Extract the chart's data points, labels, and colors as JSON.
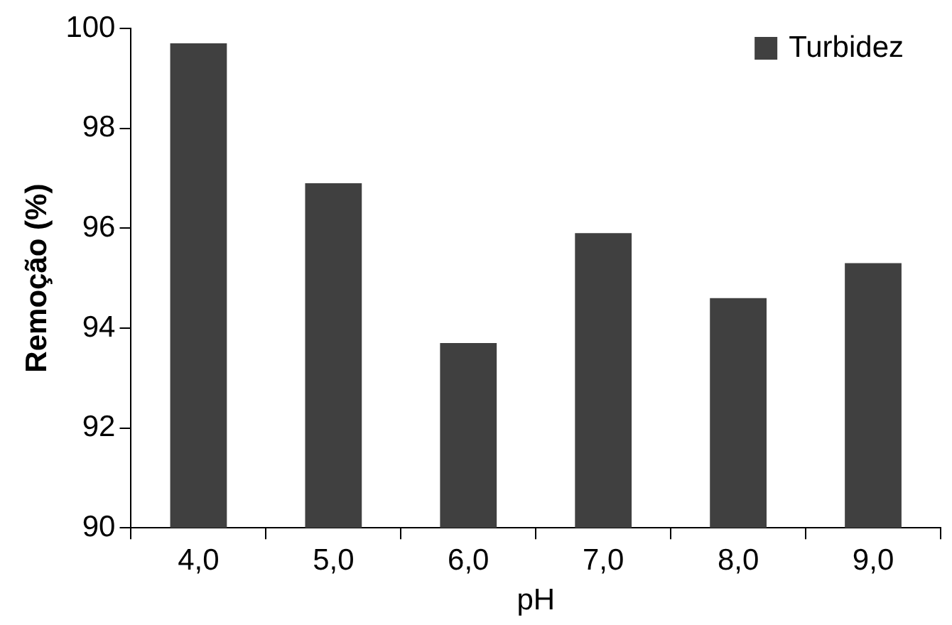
{
  "chart_data": {
    "type": "bar",
    "xlabel": "pH",
    "ylabel": "Remoção (%)",
    "categories": [
      "4,0",
      "5,0",
      "6,0",
      "7,0",
      "8,0",
      "9,0"
    ],
    "series": [
      {
        "name": "Turbidez",
        "color": "#404040",
        "values": [
          99.7,
          96.9,
          93.7,
          95.9,
          94.6,
          95.3
        ]
      }
    ],
    "ylim": [
      90,
      100
    ],
    "yticks": [
      90,
      92,
      94,
      96,
      98,
      100
    ],
    "grid": false,
    "legend": "top right"
  }
}
